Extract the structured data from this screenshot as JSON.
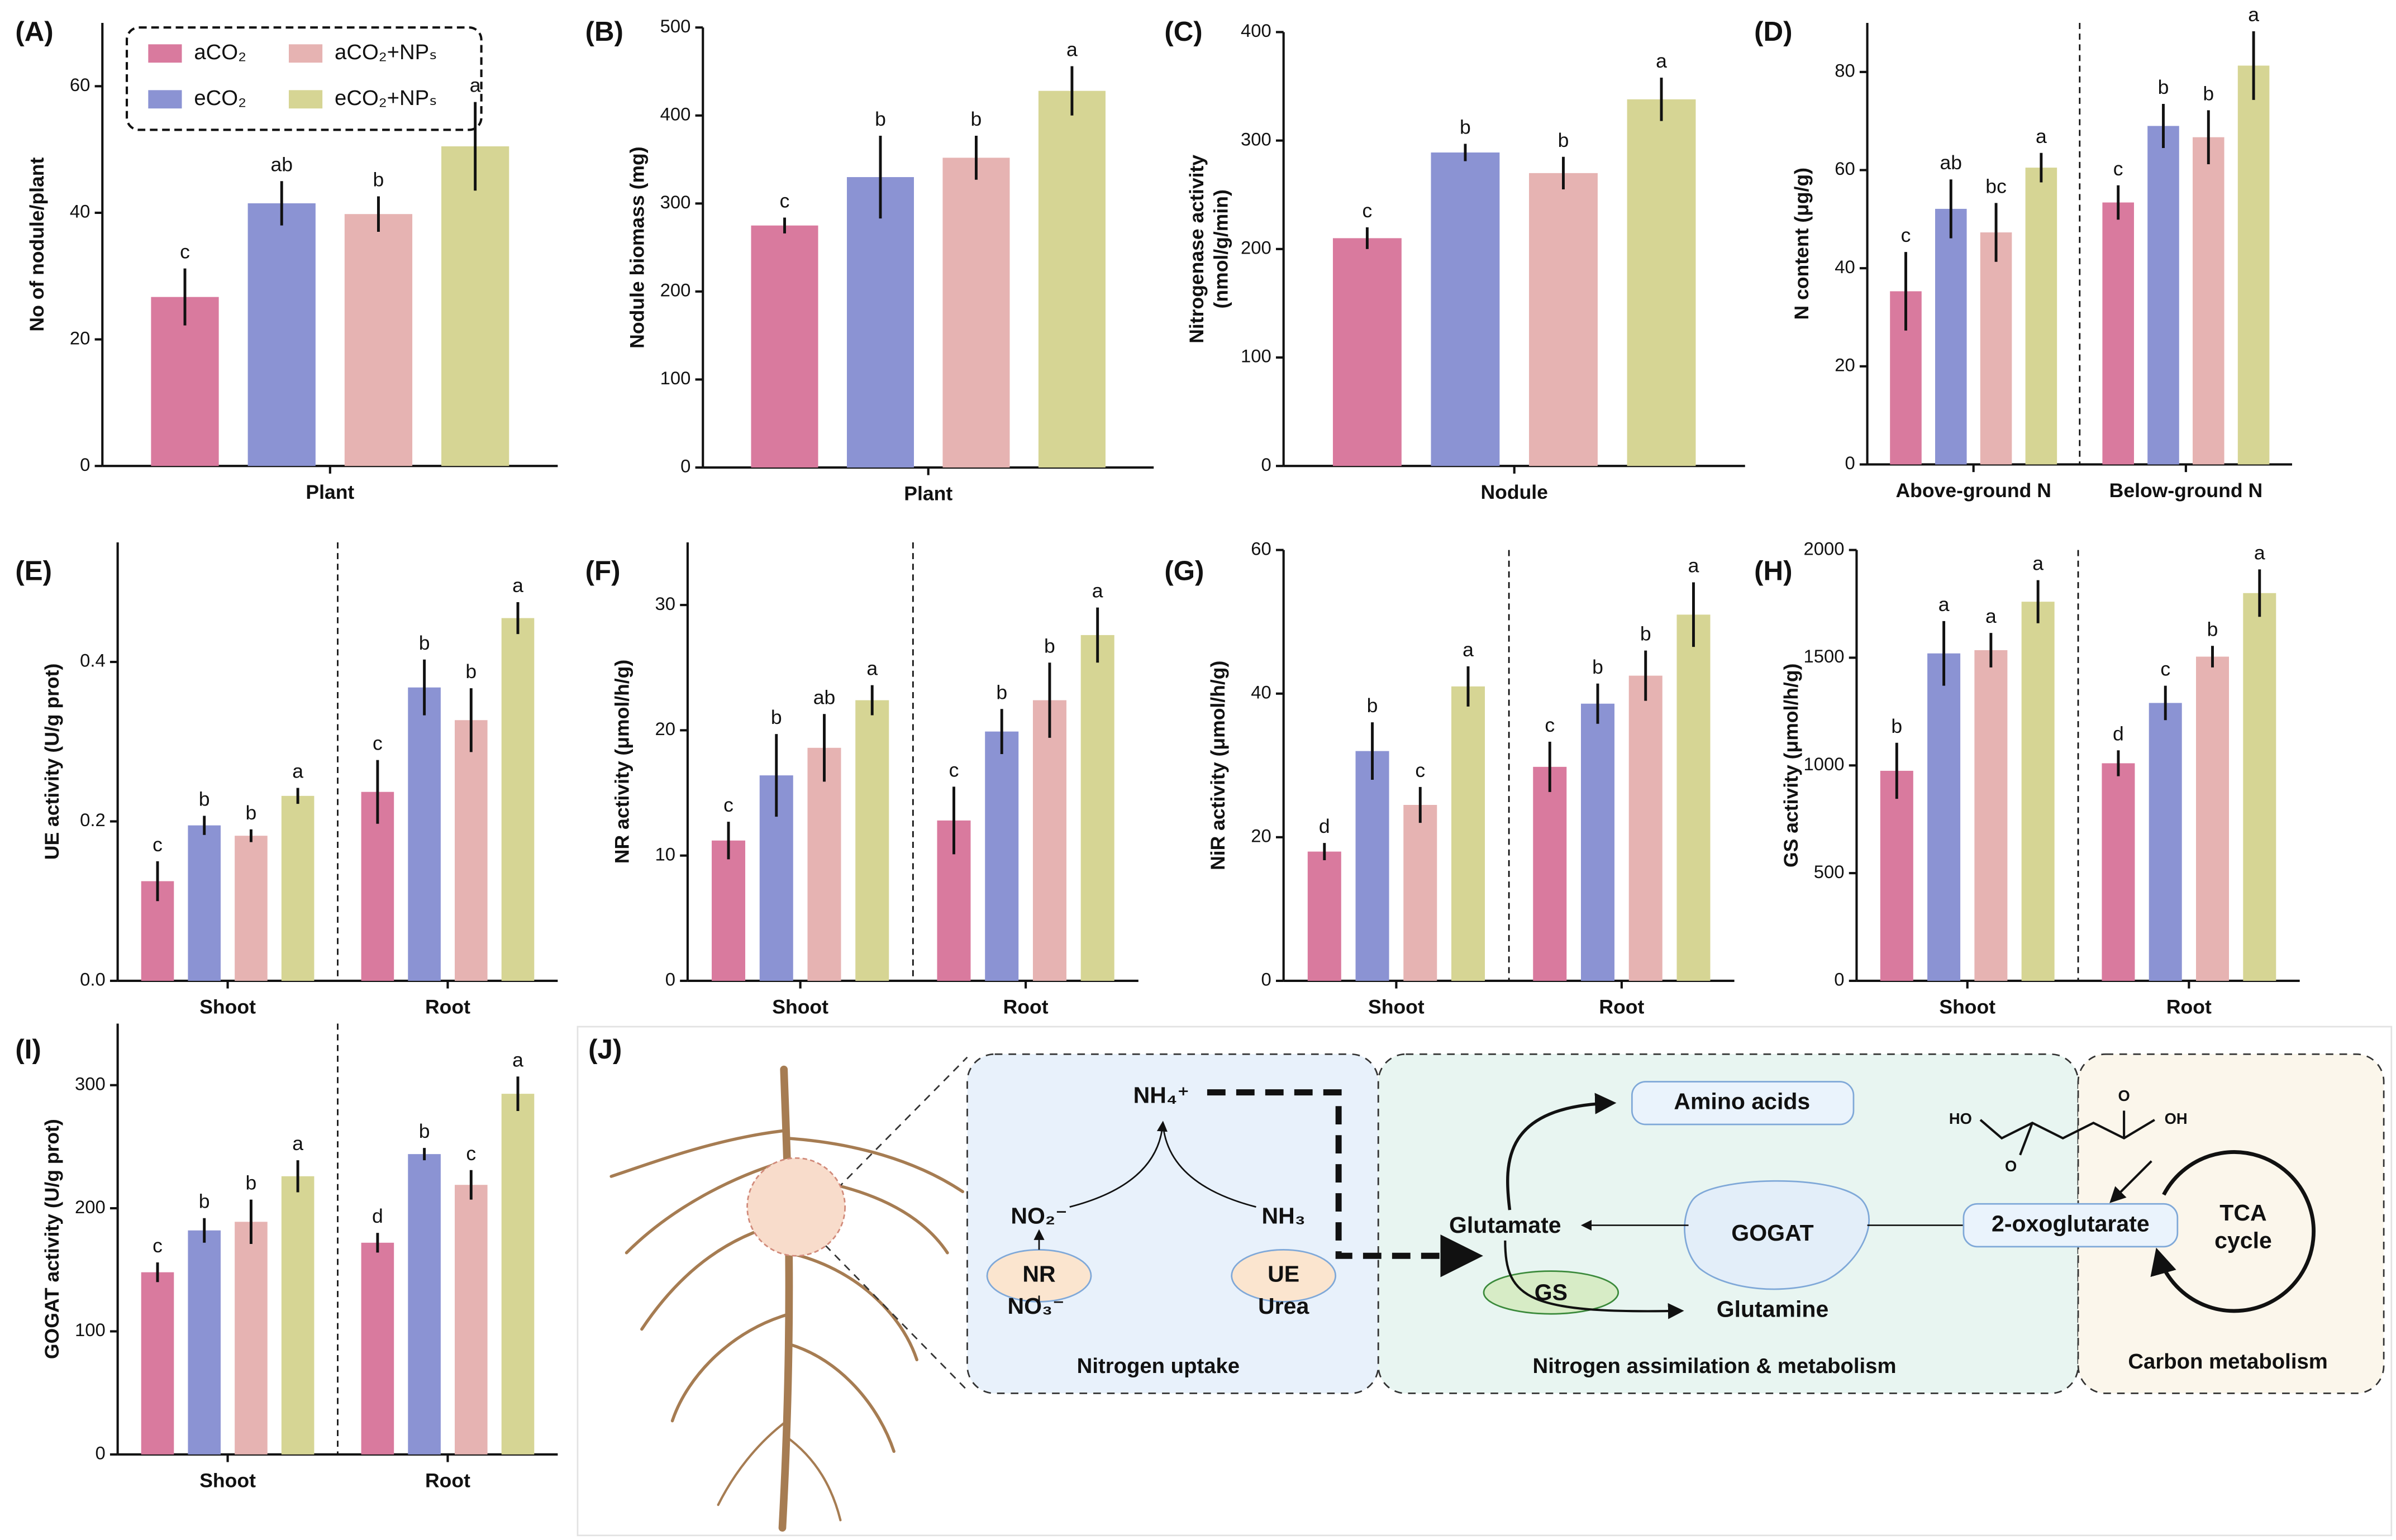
{
  "chart_data": [
    {
      "type": "bar",
      "title": "(A)",
      "ylabel": "No of nodule/plant",
      "categories": [
        "Plant"
      ],
      "ylim": [
        0,
        70
      ],
      "yticks": [
        0,
        20,
        40,
        60
      ],
      "series": [
        {
          "name": "aCO₂",
          "color": "#d97a9e",
          "values": [
            26.7
          ],
          "errors": [
            4.5
          ],
          "letters": [
            "c"
          ]
        },
        {
          "name": "eCO₂",
          "color": "#8b93d3",
          "values": [
            41.5
          ],
          "errors": [
            3.5
          ],
          "letters": [
            "ab"
          ]
        },
        {
          "name": "aCO₂+NPₛ",
          "color": "#e6b3b2",
          "values": [
            39.8
          ],
          "errors": [
            2.8
          ],
          "letters": [
            "b"
          ]
        },
        {
          "name": "eCO₂+NPₛ",
          "color": "#d6d594",
          "values": [
            50.5
          ],
          "errors": [
            7
          ],
          "letters": [
            "a"
          ]
        }
      ]
    },
    {
      "type": "bar",
      "title": "(B)",
      "ylabel": "Nodule biomass (mg)",
      "categories": [
        "Plant"
      ],
      "ylim": [
        0,
        500
      ],
      "yticks": [
        0,
        100,
        200,
        300,
        400,
        500
      ],
      "series": [
        {
          "color": "#d97a9e",
          "values": [
            275
          ],
          "errors": [
            9
          ],
          "letters": [
            "c"
          ]
        },
        {
          "color": "#8b93d3",
          "values": [
            330
          ],
          "errors": [
            47
          ],
          "letters": [
            "b"
          ]
        },
        {
          "color": "#e6b3b2",
          "values": [
            352
          ],
          "errors": [
            25
          ],
          "letters": [
            "b"
          ]
        },
        {
          "color": "#d6d594",
          "values": [
            428
          ],
          "errors": [
            28
          ],
          "letters": [
            "a"
          ]
        }
      ]
    },
    {
      "type": "bar",
      "title": "(C)",
      "ylabel": [
        "Nitrogenase activity",
        "(nmol/g/min)"
      ],
      "categories": [
        "Nodule"
      ],
      "ylim": [
        0,
        400
      ],
      "yticks": [
        0,
        100,
        200,
        300,
        400
      ],
      "series": [
        {
          "color": "#d97a9e",
          "values": [
            210
          ],
          "errors": [
            10
          ],
          "letters": [
            "c"
          ]
        },
        {
          "color": "#8b93d3",
          "values": [
            289
          ],
          "errors": [
            8
          ],
          "letters": [
            "b"
          ]
        },
        {
          "color": "#e6b3b2",
          "values": [
            270
          ],
          "errors": [
            15
          ],
          "letters": [
            "b"
          ]
        },
        {
          "color": "#d6d594",
          "values": [
            338
          ],
          "errors": [
            20
          ],
          "letters": [
            "a"
          ]
        }
      ]
    },
    {
      "type": "bar",
      "title": "(D)",
      "ylabel": "N content (μg/g)",
      "categories": [
        "Above-ground N",
        "Below-ground N"
      ],
      "ylim": [
        0,
        90
      ],
      "yticks": [
        0,
        20,
        40,
        60,
        80
      ],
      "series": [
        {
          "color": "#d97a9e",
          "values": [
            35.3,
            53.4
          ],
          "errors": [
            8,
            3.5
          ],
          "letters": [
            "c",
            "c"
          ]
        },
        {
          "color": "#8b93d3",
          "values": [
            52.1,
            69
          ],
          "errors": [
            6,
            4.5
          ],
          "letters": [
            "ab",
            "b"
          ]
        },
        {
          "color": "#e6b3b2",
          "values": [
            47.3,
            66.7
          ],
          "errors": [
            6,
            5.5
          ],
          "letters": [
            "bc",
            "b"
          ]
        },
        {
          "color": "#d6d594",
          "values": [
            60.5,
            81.3
          ],
          "errors": [
            3,
            7
          ],
          "letters": [
            "a",
            "a"
          ]
        }
      ]
    },
    {
      "type": "bar",
      "title": "(E)",
      "ylabel": "UE activity (U/g prot)",
      "categories": [
        "Shoot",
        "Root"
      ],
      "ylim": [
        0,
        0.55
      ],
      "yticks": [
        {
          "value": 0,
          "label": "0.0"
        },
        0.2,
        0.4
      ],
      "series": [
        {
          "color": "#d97a9e",
          "values": [
            0.125,
            0.237
          ],
          "errors": [
            0.025,
            0.04
          ],
          "letters": [
            "c",
            "c"
          ]
        },
        {
          "color": "#8b93d3",
          "values": [
            0.195,
            0.368
          ],
          "errors": [
            0.012,
            0.035
          ],
          "letters": [
            "b",
            "b"
          ]
        },
        {
          "color": "#e6b3b2",
          "values": [
            0.182,
            0.327
          ],
          "errors": [
            0.008,
            0.04
          ],
          "letters": [
            "b",
            "b"
          ]
        },
        {
          "color": "#d6d594",
          "values": [
            0.232,
            0.455
          ],
          "errors": [
            0.01,
            0.02
          ],
          "letters": [
            "a",
            "a"
          ]
        }
      ]
    },
    {
      "type": "bar",
      "title": "(F)",
      "ylabel": "NR activity (μmol/h/g)",
      "categories": [
        "Shoot",
        "Root"
      ],
      "ylim": [
        0,
        35
      ],
      "yticks": [
        0,
        10,
        20,
        30
      ],
      "series": [
        {
          "color": "#d97a9e",
          "values": [
            11.2,
            12.8
          ],
          "errors": [
            1.5,
            2.7
          ],
          "letters": [
            "c",
            "c"
          ]
        },
        {
          "color": "#8b93d3",
          "values": [
            16.4,
            19.9
          ],
          "errors": [
            3.3,
            1.8
          ],
          "letters": [
            "b",
            "b"
          ]
        },
        {
          "color": "#e6b3b2",
          "values": [
            18.6,
            22.4
          ],
          "errors": [
            2.7,
            3
          ],
          "letters": [
            "ab",
            "b"
          ]
        },
        {
          "color": "#d6d594",
          "values": [
            22.4,
            27.6
          ],
          "errors": [
            1.2,
            2.2
          ],
          "letters": [
            "a",
            "a"
          ]
        }
      ]
    },
    {
      "type": "bar",
      "title": "(G)",
      "ylabel": "NiR activity (μmol/h/g)",
      "categories": [
        "Shoot",
        "Root"
      ],
      "ylim": [
        0,
        60
      ],
      "yticks": [
        0,
        20,
        40,
        60
      ],
      "series": [
        {
          "color": "#d97a9e",
          "values": [
            18,
            29.8
          ],
          "errors": [
            1.2,
            3.5
          ],
          "letters": [
            "d",
            "c"
          ]
        },
        {
          "color": "#8b93d3",
          "values": [
            32,
            38.6
          ],
          "errors": [
            4,
            2.8
          ],
          "letters": [
            "b",
            "b"
          ]
        },
        {
          "color": "#e6b3b2",
          "values": [
            24.5,
            42.5
          ],
          "errors": [
            2.5,
            3.5
          ],
          "letters": [
            "c",
            "b"
          ]
        },
        {
          "color": "#d6d594",
          "values": [
            41,
            51
          ],
          "errors": [
            2.8,
            4.5
          ],
          "letters": [
            "a",
            "a"
          ]
        }
      ]
    },
    {
      "type": "bar",
      "title": "(H)",
      "ylabel": "GS activity (μmol/h/g)",
      "categories": [
        "Shoot",
        "Root"
      ],
      "ylim": [
        0,
        2000
      ],
      "yticks": [
        0,
        500,
        1000,
        1500,
        2000
      ],
      "series": [
        {
          "color": "#d97a9e",
          "values": [
            975,
            1010
          ],
          "errors": [
            130,
            60
          ],
          "letters": [
            "b",
            "d"
          ]
        },
        {
          "color": "#8b93d3",
          "values": [
            1520,
            1290
          ],
          "errors": [
            150,
            80
          ],
          "letters": [
            "a",
            "c"
          ]
        },
        {
          "color": "#e6b3b2",
          "values": [
            1535,
            1505
          ],
          "errors": [
            80,
            50
          ],
          "letters": [
            "a",
            "b"
          ]
        },
        {
          "color": "#d6d594",
          "values": [
            1760,
            1800
          ],
          "errors": [
            100,
            110
          ],
          "letters": [
            "a",
            "a"
          ]
        }
      ]
    },
    {
      "type": "bar",
      "title": "(I)",
      "ylabel": "GOGAT activity (U/g prot)",
      "categories": [
        "Shoot",
        "Root"
      ],
      "ylim": [
        0,
        350
      ],
      "yticks": [
        0,
        100,
        200,
        300
      ],
      "series": [
        {
          "color": "#d97a9e",
          "values": [
            148,
            172
          ],
          "errors": [
            8,
            8
          ],
          "letters": [
            "c",
            "d"
          ]
        },
        {
          "color": "#8b93d3",
          "values": [
            182,
            244
          ],
          "errors": [
            10,
            5
          ],
          "letters": [
            "b",
            "b"
          ]
        },
        {
          "color": "#e6b3b2",
          "values": [
            189,
            219
          ],
          "errors": [
            18,
            12
          ],
          "letters": [
            "b",
            "c"
          ]
        },
        {
          "color": "#d6d594",
          "values": [
            226,
            293
          ],
          "errors": [
            13,
            14
          ],
          "letters": [
            "a",
            "a"
          ]
        }
      ]
    }
  ],
  "diagram": {
    "title": "(J)",
    "nh4": "NH₄⁺",
    "no2": "NO₂⁻",
    "nh3": "NH₃",
    "nr": "NR",
    "ue": "UE",
    "no3": "NO₃⁻",
    "urea": "Urea",
    "uptake": "Nitrogen uptake",
    "amino": "Amino acids",
    "glutamate": "Glutamate",
    "gogat": "GOGAT",
    "gs": "GS",
    "glutamine": "Glutamine",
    "oxo": "2-oxoglutarate",
    "tca": [
      "TCA",
      "cycle"
    ],
    "assimilation": "Nitrogen assimilation & metabolism",
    "carbon": "Carbon metabolism",
    "ho": "HO",
    "oh": "OH",
    "o": "O"
  }
}
